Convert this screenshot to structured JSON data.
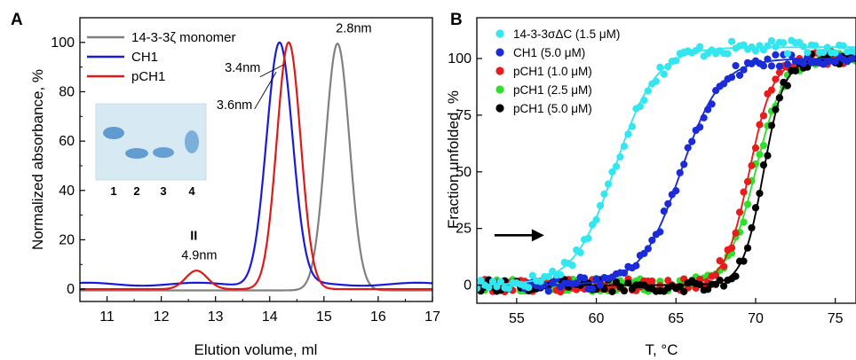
{
  "chart_data": [
    {
      "panel": "A",
      "type": "line",
      "xlabel": "Elution volume, ml",
      "ylabel": "Normalized absorbance, %",
      "xlim": [
        10.5,
        17
      ],
      "ylim": [
        -5,
        110
      ],
      "xticks": [
        "11",
        "12",
        "13",
        "14",
        "15",
        "16",
        "17"
      ],
      "yticks": [
        "0",
        "20",
        "40",
        "60",
        "80",
        "100"
      ],
      "legend_position": "top-left",
      "series": [
        {
          "name": "14-3-3ζ monomer",
          "color": "#808080",
          "baseline": -0.5,
          "peaks": [
            {
              "center": 15.25,
              "height": 100,
              "width": 0.22
            }
          ]
        },
        {
          "name": "CH1",
          "color": "#1a1adb",
          "baseline": 2,
          "peaks": [
            {
              "center": 14.18,
              "height": 98,
              "width": 0.24
            }
          ]
        },
        {
          "name": "pCH1",
          "color": "#e01818",
          "baseline": 0,
          "peaks": [
            {
              "center": 14.35,
              "height": 100,
              "width": 0.22
            },
            {
              "center": 12.65,
              "height": 7.5,
              "width": 0.2
            }
          ]
        }
      ],
      "annotations": [
        {
          "text": "2.8nm",
          "x": 15.55,
          "y": 104
        },
        {
          "text": "3.4nm",
          "x": 13.5,
          "y": 88
        },
        {
          "text": "3.6nm",
          "x": 13.35,
          "y": 73
        },
        {
          "text": "II",
          "x": 12.6,
          "y": 20
        },
        {
          "text": "4.9nm",
          "x": 12.7,
          "y": 12
        }
      ],
      "inset": {
        "lanes": [
          "1",
          "2",
          "3",
          "4"
        ]
      }
    },
    {
      "panel": "B",
      "type": "scatter",
      "xlabel": "T, °C",
      "ylabel": "Fraction unfolded, %",
      "xlim": [
        52.5,
        76.3
      ],
      "ylim": [
        -8,
        118
      ],
      "xticks": [
        "55",
        "60",
        "65",
        "70",
        "75"
      ],
      "yticks": [
        "0",
        "25",
        "50",
        "75",
        "100"
      ],
      "legend_position": "top-left",
      "series": [
        {
          "name": "14-3-3σΔC (1.5 μM)",
          "color": "#33e6f0",
          "tm": 61.2,
          "slope": 1.3,
          "top": 105,
          "x_range": [
            52.5,
            76.3
          ]
        },
        {
          "name": "CH1 (5.0 μM)",
          "color": "#1c2bd8",
          "tm": 65.3,
          "slope": 1.25,
          "top": 100,
          "x_range": [
            55.5,
            76.3
          ]
        },
        {
          "name": "pCH1 (1.0 μM)",
          "color": "#e81c1c",
          "tm": 69.6,
          "slope": 0.75,
          "top": 100,
          "x_range": [
            52.5,
            76.3
          ]
        },
        {
          "name": "pCH1 (2.5 μM)",
          "color": "#2fe02a",
          "tm": 70.0,
          "slope": 0.9,
          "top": 101,
          "x_range": [
            52.5,
            76.3
          ]
        },
        {
          "name": "pCH1 (5.0 μM)",
          "color": "#000000",
          "tm": 70.5,
          "slope": 0.65,
          "top": 100,
          "x_range": [
            52.5,
            76.3
          ]
        }
      ],
      "annotations": [
        {
          "text": "→",
          "x": 54.5,
          "y": 22
        }
      ]
    }
  ],
  "labels": {
    "panel_a": "A",
    "panel_b": "B"
  }
}
